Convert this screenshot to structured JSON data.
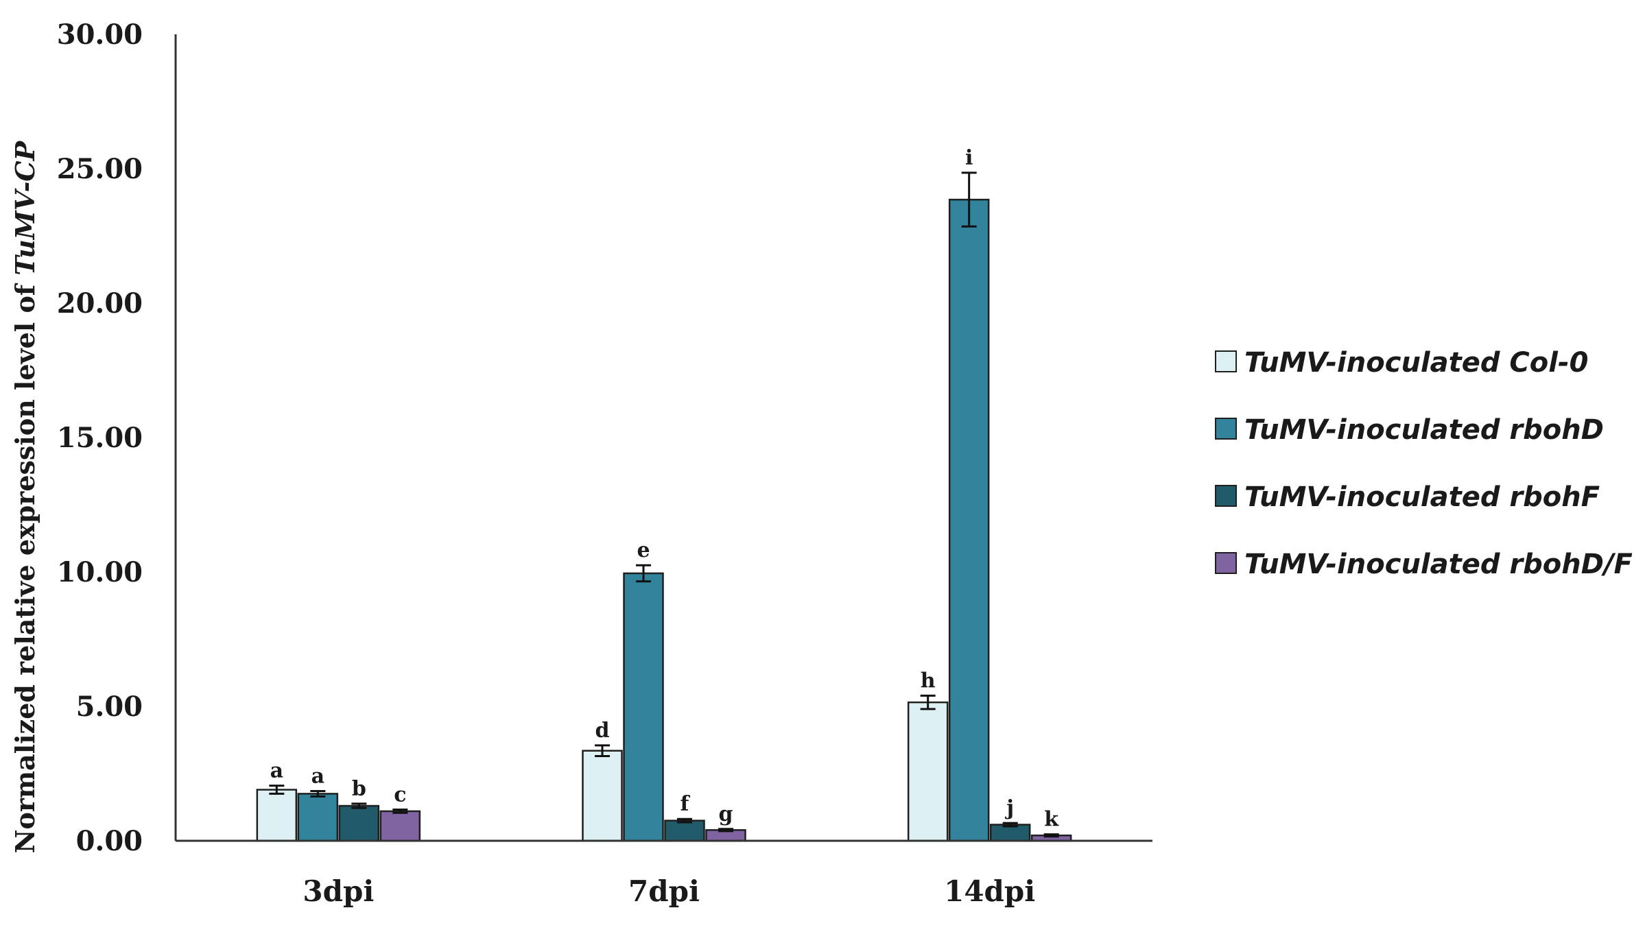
{
  "chart_data": {
    "type": "bar",
    "ylabel": {
      "prefix": "Normalized relative expression level of ",
      "italic": "TuMV-CP"
    },
    "xlabel": "",
    "ylim": [
      0,
      30
    ],
    "yticks": [
      "0.00",
      "5.00",
      "10.00",
      "15.00",
      "20.00",
      "25.00",
      "30.00"
    ],
    "ytick_values": [
      0,
      5,
      10,
      15,
      20,
      25,
      30
    ],
    "grid": false,
    "legend_position": "right",
    "categories": [
      "3dpi",
      "7dpi",
      "14dpi"
    ],
    "series": [
      {
        "name": "TuMV-inoculated Col-0",
        "color": "#ddf1f4",
        "values": [
          1.9,
          3.35,
          5.15
        ],
        "errors": [
          0.15,
          0.2,
          0.25
        ],
        "letters": [
          "a",
          "d",
          "h"
        ]
      },
      {
        "name": "TuMV-inoculated rbohD",
        "color": "#31849b",
        "values": [
          1.75,
          9.95,
          23.85
        ],
        "errors": [
          0.1,
          0.3,
          1.0
        ],
        "letters": [
          "a",
          "e",
          "i"
        ]
      },
      {
        "name": "TuMV-inoculated rbohF",
        "color": "#215a69",
        "values": [
          1.3,
          0.75,
          0.6
        ],
        "errors": [
          0.08,
          0.06,
          0.06
        ],
        "letters": [
          "b",
          "f",
          "j"
        ]
      },
      {
        "name": "TuMV-inoculated rbohD/F",
        "color": "#8064a2",
        "values": [
          1.1,
          0.4,
          0.2
        ],
        "errors": [
          0.06,
          0.04,
          0.04
        ],
        "letters": [
          "c",
          "g",
          "k"
        ]
      }
    ]
  }
}
